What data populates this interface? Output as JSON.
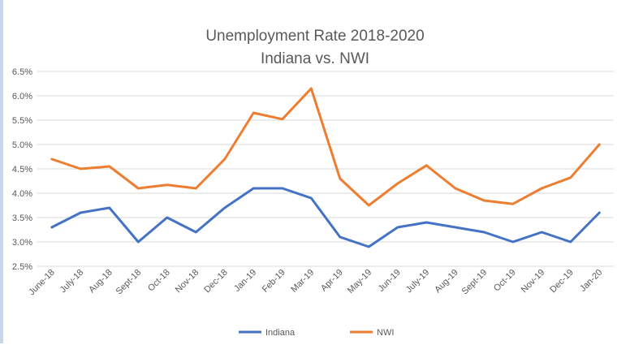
{
  "chart_data": {
    "type": "line",
    "title": "Unemployment Rate 2018-2020",
    "subtitle": "Indiana vs. NWI",
    "categories": [
      "June-18",
      "July-18",
      "Aug-18",
      "Sept-18",
      "Oct-18",
      "Nov-18",
      "Dec-18",
      "Jan-19",
      "Feb-19",
      "Mar-19",
      "Apr-19",
      "May-19",
      "Jun-19",
      "July-19",
      "Aug-19",
      "Sept-19",
      "Oct-19",
      "Nov-19",
      "Dec-19",
      "Jan-20"
    ],
    "ylim": [
      2.5,
      6.5
    ],
    "yticks": [
      "2.5%",
      "3.0%",
      "3.5%",
      "4.0%",
      "4.5%",
      "5.0%",
      "5.5%",
      "6.0%",
      "6.5%"
    ],
    "grid": true,
    "legend_position": "bottom",
    "series": [
      {
        "name": "Indiana",
        "color": "#4472c4",
        "values": [
          3.3,
          3.6,
          3.7,
          3.0,
          3.5,
          3.2,
          3.7,
          4.1,
          4.1,
          3.9,
          3.1,
          2.9,
          3.3,
          3.4,
          3.3,
          3.2,
          3.0,
          3.2,
          3.0,
          3.6
        ]
      },
      {
        "name": "NWI",
        "color": "#ed7d31",
        "values": [
          4.7,
          4.5,
          4.55,
          4.1,
          4.17,
          4.1,
          4.7,
          5.65,
          5.52,
          6.15,
          4.3,
          3.75,
          4.2,
          4.57,
          4.1,
          3.85,
          3.78,
          4.1,
          4.32,
          5.0
        ]
      }
    ]
  }
}
